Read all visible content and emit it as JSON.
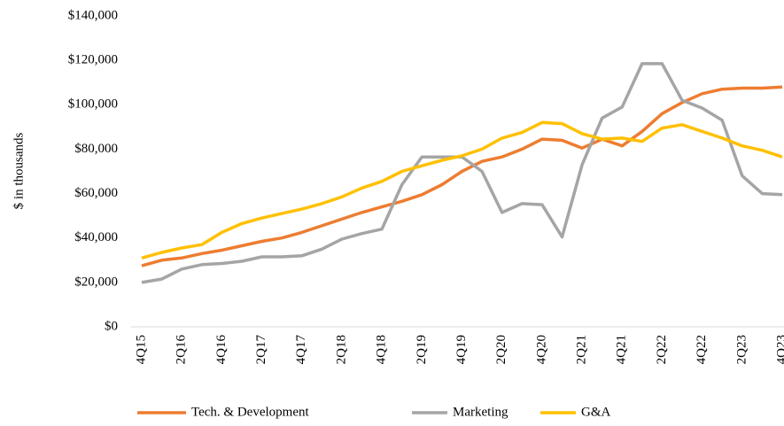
{
  "chart_data": {
    "type": "line",
    "y_label": "$ in thousands",
    "categories": [
      "4Q15",
      null,
      "2Q16",
      null,
      "4Q16",
      null,
      "2Q17",
      null,
      "4Q17",
      null,
      "2Q18",
      null,
      "4Q18",
      null,
      "2Q19",
      null,
      "4Q19",
      null,
      "2Q20",
      null,
      "4Q20",
      null,
      "2Q21",
      null,
      "4Q21",
      null,
      "2Q22",
      null,
      "4Q22",
      null,
      "2Q23",
      null,
      "4Q23"
    ],
    "series": [
      {
        "name": "Tech. & Development",
        "color": "#ED7D31",
        "values": [
          27500,
          30000,
          31000,
          33000,
          34500,
          36500,
          38500,
          40000,
          42500,
          45500,
          48500,
          51500,
          54000,
          56500,
          59500,
          64000,
          70000,
          74500,
          76500,
          80000,
          84500,
          84000,
          80500,
          84500,
          81500,
          88000,
          96000,
          101000,
          105000,
          107000,
          107500,
          107500,
          108000
        ]
      },
      {
        "name": "Marketing",
        "color": "#A5A5A5",
        "values": [
          20000,
          21500,
          26000,
          28000,
          28500,
          29500,
          31500,
          31500,
          32000,
          35000,
          39500,
          42000,
          44000,
          64000,
          76500,
          76500,
          76500,
          70000,
          51500,
          55500,
          55000,
          40500,
          73000,
          94000,
          99000,
          118500,
          118500,
          102000,
          98500,
          93000,
          68000,
          60000,
          59500
        ]
      },
      {
        "name": "G&A",
        "color": "#FFC000",
        "values": [
          31000,
          33500,
          35500,
          37000,
          42500,
          46500,
          49000,
          51000,
          53000,
          55500,
          58500,
          62500,
          65500,
          70000,
          72500,
          75000,
          77000,
          80000,
          85000,
          87500,
          92000,
          91500,
          87000,
          84500,
          85000,
          83500,
          89500,
          91000,
          88000,
          85000,
          81500,
          79500,
          76500
        ]
      }
    ],
    "ylim": [
      0,
      140000
    ],
    "yticks": [
      {
        "value": 0,
        "label": "$0"
      },
      {
        "value": 20000,
        "label": "$20,000"
      },
      {
        "value": 40000,
        "label": "$40,000"
      },
      {
        "value": 60000,
        "label": "$60,000"
      },
      {
        "value": 80000,
        "label": "$80,000"
      },
      {
        "value": 100000,
        "label": "$100,000"
      },
      {
        "value": 120000,
        "label": "$120,000"
      },
      {
        "value": 140000,
        "label": "$140,000"
      }
    ],
    "legend": "bottom"
  }
}
